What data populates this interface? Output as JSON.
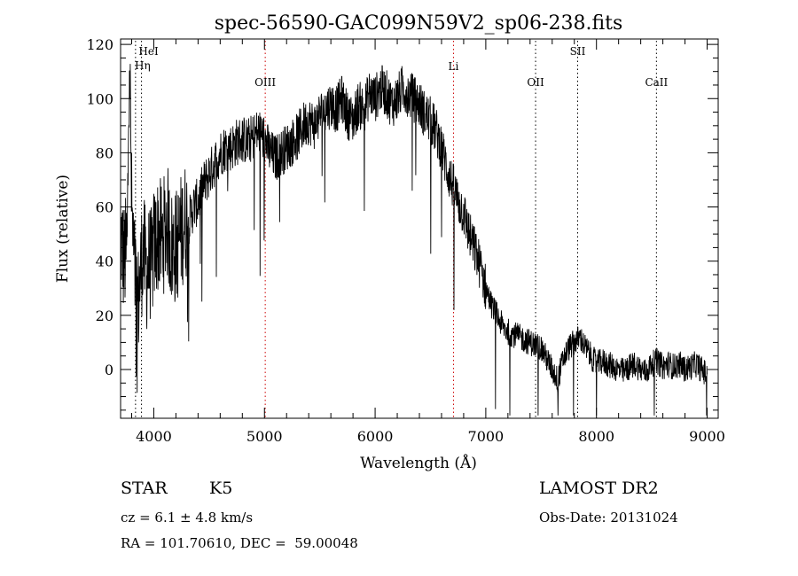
{
  "chart_data": {
    "type": "line",
    "title": "spec-56590-GAC099N59V2_sp06-238.fits",
    "xlabel": "Wavelength (Å)",
    "ylabel": "Flux (relative)",
    "xlim": [
      3700,
      9100
    ],
    "ylim": [
      -18,
      122
    ],
    "xticks": [
      4000,
      5000,
      6000,
      7000,
      8000,
      9000
    ],
    "yticks": [
      0,
      20,
      40,
      60,
      80,
      100,
      120
    ],
    "grid": false,
    "series": [
      {
        "x": [
          3700,
          3730,
          3760,
          3780,
          3800,
          3820,
          3840,
          3860,
          3880,
          3900,
          3920,
          3940,
          3960,
          3980,
          4000,
          4040,
          4080,
          4120,
          4160,
          4200,
          4240,
          4280,
          4320,
          4360,
          4400,
          4450,
          4500,
          4550,
          4600,
          4650,
          4700,
          4750,
          4800,
          4850,
          4900,
          4950,
          5000,
          5050,
          5100,
          5150,
          5200,
          5250,
          5300,
          5350,
          5400,
          5450,
          5500,
          5550,
          5600,
          5650,
          5700,
          5750,
          5800,
          5850,
          5900,
          5950,
          6000,
          6050,
          6100,
          6150,
          6200,
          6250,
          6300,
          6350,
          6400,
          6450,
          6500,
          6550,
          6600,
          6650,
          6700,
          6750,
          6800,
          6850,
          6900,
          6950,
          7000,
          7050,
          7100,
          7150,
          7200,
          7250,
          7300,
          7350,
          7400,
          7450,
          7500,
          7550,
          7600,
          7650,
          7700,
          7750,
          7800,
          7850,
          7900,
          7950,
          8000,
          8050,
          8100,
          8150,
          8200,
          8250,
          8300,
          8350,
          8400,
          8450,
          8500,
          8550,
          8600,
          8650,
          8700,
          8750,
          8800,
          8850,
          8900,
          8950,
          9000
        ],
        "y": [
          50,
          40,
          45,
          120,
          60,
          40,
          30,
          25,
          35,
          45,
          40,
          35,
          40,
          38,
          45,
          50,
          48,
          55,
          45,
          45,
          50,
          55,
          55,
          60,
          62,
          68,
          72,
          76,
          80,
          82,
          82,
          84,
          85,
          84,
          86,
          88,
          85,
          80,
          78,
          80,
          82,
          84,
          86,
          90,
          92,
          90,
          94,
          96,
          98,
          96,
          100,
          94,
          92,
          98,
          96,
          102,
          100,
          104,
          102,
          98,
          100,
          104,
          102,
          100,
          98,
          94,
          92,
          88,
          82,
          74,
          68,
          62,
          58,
          50,
          44,
          38,
          30,
          24,
          20,
          16,
          14,
          13,
          12,
          11,
          10,
          9,
          8,
          4,
          0,
          -4,
          4,
          8,
          10,
          12,
          8,
          5,
          2,
          3,
          2,
          1,
          0,
          -1,
          1,
          2,
          0,
          -1,
          2,
          3,
          1,
          2,
          1,
          2,
          0,
          1,
          2,
          0,
          -2
        ]
      }
    ],
    "line_markers": [
      {
        "label": "HeI",
        "x": 3889,
        "color": "#000000"
      },
      {
        "label": "Hη",
        "x": 3835,
        "color": "#000000"
      },
      {
        "label": "OIII",
        "x": 5007,
        "color": "#cc0000"
      },
      {
        "label": "Li",
        "x": 6708,
        "color": "#cc0000"
      },
      {
        "label": "OII",
        "x": 7450,
        "color": "#000000"
      },
      {
        "label": "SII",
        "x": 7830,
        "color": "#000000"
      },
      {
        "label": "CaII",
        "x": 8542,
        "color": "#000000"
      }
    ]
  },
  "info": {
    "object_class": "STAR",
    "subclass": "K5",
    "cz": "cz = 6.1 ± 4.8 km/s",
    "radec": "RA = 101.70610, DEC =  59.00048",
    "survey": "LAMOST DR2",
    "obsdate": "Obs-Date: 20131024"
  }
}
